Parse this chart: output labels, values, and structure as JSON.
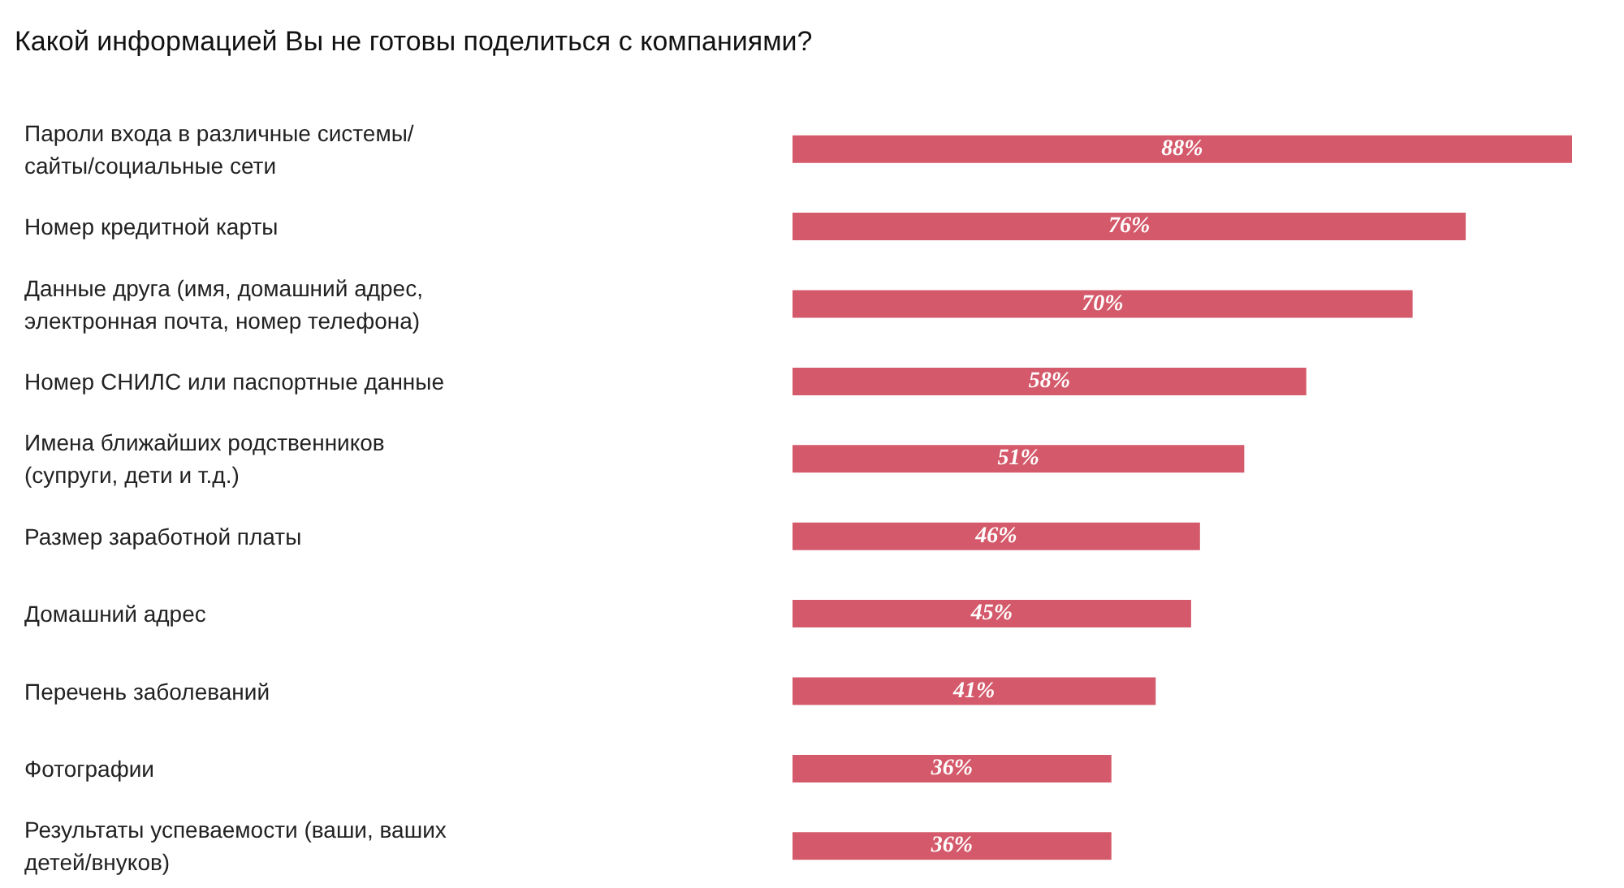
{
  "chart_data": {
    "type": "bar",
    "orientation": "horizontal",
    "title": "Какой информацией Вы не готовы поделиться с компаниями?",
    "categories": [
      "Пароли входа в различные системы/сайты/социальные сети",
      "Номер кредитной карты",
      "Данные друга (имя, домашний адрес, электронная почта, номер телефона)",
      "Номер СНИЛС или паспортные данные",
      "Имена ближайших родственников (супруги, дети и т.д.)",
      "Размер заработной платы",
      "Домашний адрес",
      "Перечень заболеваний",
      "Фотографии",
      "Результаты успеваемости (ваши, ваших детей/внуков)"
    ],
    "values": [
      88,
      76,
      70,
      58,
      51,
      46,
      45,
      41,
      36,
      36
    ],
    "value_labels": [
      "88%",
      "76%",
      "70%",
      "58%",
      "51%",
      "46%",
      "45%",
      "41%",
      "36%",
      "36%"
    ],
    "color": "#d45a6b"
  }
}
